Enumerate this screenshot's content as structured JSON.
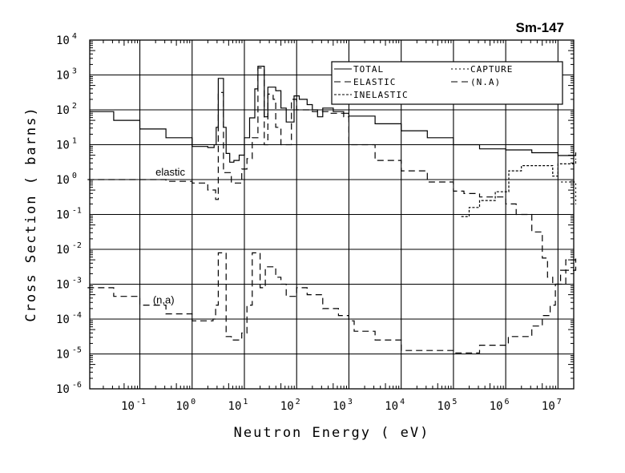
{
  "chart_data": {
    "type": "line",
    "title": "Sm-147",
    "xlabel": "Neutron Energy ( eV)",
    "ylabel": "Cross Section ( barns)",
    "xscale": "log",
    "yscale": "log",
    "xlim": [
      0.011,
      20000000
    ],
    "ylim": [
      1e-06,
      10000.0
    ],
    "grid": true,
    "legend_position": "top-right",
    "x_tick_exponents": [
      "-1",
      "0",
      "1",
      "2",
      "3",
      "4",
      "5",
      "6",
      "7"
    ],
    "y_tick_exponents": [
      "4",
      "3",
      "2",
      "1",
      "0",
      "-1",
      "-2",
      "-3",
      "-4",
      "-5",
      "-6"
    ],
    "tick_base": "10",
    "legend": [
      {
        "key": "total",
        "label": "TOTAL"
      },
      {
        "key": "capture",
        "label": "CAPTURE"
      },
      {
        "key": "elastic",
        "label": "ELASTIC"
      },
      {
        "key": "na",
        "label": "(N.A)"
      },
      {
        "key": "inelastic",
        "label": "INELASTIC"
      }
    ],
    "annotations": [
      {
        "key": "elastic",
        "text": "elastic",
        "at_log10": [
          -0.7,
          0.12
        ]
      },
      {
        "key": "na",
        "text": "(n,a)",
        "at_log10": [
          -0.75,
          -3.55
        ]
      }
    ],
    "series": [
      {
        "key": "total",
        "name": "TOTAL",
        "style": "solid",
        "points": [
          [
            -1.95,
            1.95
          ],
          [
            -1.5,
            1.7
          ],
          [
            -1,
            1.45
          ],
          [
            -0.5,
            1.2
          ],
          [
            0,
            0.95
          ],
          [
            0.3,
            0.92
          ],
          [
            0.42,
            1.0
          ],
          [
            0.46,
            1.5
          ],
          [
            0.5,
            2.9
          ],
          [
            0.58,
            2.9
          ],
          [
            0.6,
            1.5
          ],
          [
            0.65,
            0.75
          ],
          [
            0.72,
            0.5
          ],
          [
            0.8,
            0.55
          ],
          [
            0.9,
            0.7
          ],
          [
            1.0,
            1.2
          ],
          [
            1.1,
            1.77
          ],
          [
            1.2,
            2.6
          ],
          [
            1.26,
            3.25
          ],
          [
            1.36,
            3.25
          ],
          [
            1.38,
            1.8
          ],
          [
            1.45,
            2.65
          ],
          [
            1.6,
            2.55
          ],
          [
            1.7,
            2.05
          ],
          [
            1.8,
            1.65
          ],
          [
            1.9,
            1.65
          ],
          [
            1.95,
            2.4
          ],
          [
            2.05,
            2.3
          ],
          [
            2.2,
            2.15
          ],
          [
            2.3,
            2.0
          ],
          [
            2.4,
            1.8
          ],
          [
            2.5,
            2.05
          ],
          [
            2.7,
            1.95
          ],
          [
            2.9,
            1.9
          ],
          [
            3.0,
            1.82
          ],
          [
            3.5,
            1.6
          ],
          [
            4.0,
            1.4
          ],
          [
            4.5,
            1.2
          ],
          [
            5.0,
            1.0
          ],
          [
            5.5,
            0.88
          ],
          [
            6.0,
            0.85
          ],
          [
            6.5,
            0.77
          ],
          [
            7.0,
            0.69
          ],
          [
            7.34,
            0.78
          ]
        ]
      },
      {
        "key": "elastic",
        "name": "ELASTIC",
        "style": "dashed",
        "points": [
          [
            -2,
            0.0
          ],
          [
            -1.7,
            0.0
          ],
          [
            -1,
            0.0
          ],
          [
            -0.5,
            -0.05
          ],
          [
            0,
            -0.1
          ],
          [
            0.3,
            -0.3
          ],
          [
            0.45,
            -0.57
          ],
          [
            0.5,
            2.5
          ],
          [
            0.58,
            2.5
          ],
          [
            0.6,
            0.2
          ],
          [
            0.75,
            -0.1
          ],
          [
            0.95,
            0.3
          ],
          [
            1.05,
            0.6
          ],
          [
            1.15,
            1.2
          ],
          [
            1.26,
            3.2
          ],
          [
            1.36,
            3.2
          ],
          [
            1.38,
            1.0
          ],
          [
            1.45,
            2.45
          ],
          [
            1.55,
            2.3
          ],
          [
            1.6,
            1.5
          ],
          [
            1.7,
            1.0
          ],
          [
            1.8,
            1.0
          ],
          [
            1.9,
            2.3
          ],
          [
            2.0,
            2.0
          ],
          [
            2.3,
            1.95
          ],
          [
            2.6,
            1.9
          ],
          [
            2.9,
            1.8
          ],
          [
            3.0,
            1.0
          ],
          [
            3.5,
            0.55
          ],
          [
            4.0,
            0.25
          ],
          [
            4.5,
            -0.07
          ],
          [
            5.0,
            -0.33
          ],
          [
            5.2,
            -0.4
          ],
          [
            5.5,
            -0.5
          ],
          [
            6.0,
            -0.7
          ],
          [
            6.2,
            -1.0
          ],
          [
            6.5,
            -1.5
          ],
          [
            6.7,
            -2.25
          ],
          [
            6.8,
            -2.8
          ],
          [
            6.9,
            -3.0
          ],
          [
            7.05,
            -3.0
          ],
          [
            7.15,
            -2.6
          ],
          [
            7.34,
            -2.3
          ]
        ]
      },
      {
        "key": "inelastic",
        "name": "INELASTIC",
        "style": "dotted",
        "points": [
          [
            5.15,
            -1.06
          ],
          [
            5.3,
            -0.8
          ],
          [
            5.5,
            -0.6
          ],
          [
            5.8,
            -0.35
          ],
          [
            6.06,
            0.25
          ],
          [
            6.3,
            0.4
          ],
          [
            6.85,
            0.4
          ],
          [
            6.9,
            0.1
          ],
          [
            7.0,
            0.45
          ],
          [
            7.34,
            0.6
          ]
        ]
      },
      {
        "key": "capture",
        "name": "CAPTURE",
        "style": "short-dash",
        "points": [
          [
            7.06,
            -0.07
          ],
          [
            7.34,
            -0.71
          ]
        ]
      },
      {
        "key": "na",
        "name": "(N.A)",
        "style": "dashed",
        "points": [
          [
            -2,
            -3.1
          ],
          [
            -1.5,
            -3.35
          ],
          [
            -1,
            -3.6
          ],
          [
            -0.5,
            -3.85
          ],
          [
            0,
            -4.05
          ],
          [
            0.25,
            -4.05
          ],
          [
            0.4,
            -4.0
          ],
          [
            0.45,
            -3.6
          ],
          [
            0.5,
            -2.1
          ],
          [
            0.58,
            -2.1
          ],
          [
            0.65,
            -4.5
          ],
          [
            0.75,
            -4.6
          ],
          [
            0.95,
            -4.4
          ],
          [
            1.05,
            -3.6
          ],
          [
            1.15,
            -2.1
          ],
          [
            1.25,
            -2.1
          ],
          [
            1.3,
            -3.1
          ],
          [
            1.4,
            -2.5
          ],
          [
            1.6,
            -2.8
          ],
          [
            1.7,
            -3.0
          ],
          [
            1.8,
            -3.35
          ],
          [
            2.0,
            -3.1
          ],
          [
            2.2,
            -3.3
          ],
          [
            2.5,
            -3.7
          ],
          [
            2.8,
            -3.9
          ],
          [
            3.0,
            -4.05
          ],
          [
            3.1,
            -4.35
          ],
          [
            3.5,
            -4.6
          ],
          [
            4.0,
            -4.9
          ],
          [
            5.0,
            -4.97
          ],
          [
            5.5,
            -4.75
          ],
          [
            6.05,
            -4.5
          ],
          [
            6.5,
            -4.2
          ],
          [
            6.7,
            -3.9
          ],
          [
            6.85,
            -3.6
          ],
          [
            6.95,
            -3.0
          ],
          [
            7.05,
            -2.6
          ],
          [
            7.15,
            -2.3
          ],
          [
            7.34,
            -2.2
          ]
        ]
      }
    ]
  }
}
